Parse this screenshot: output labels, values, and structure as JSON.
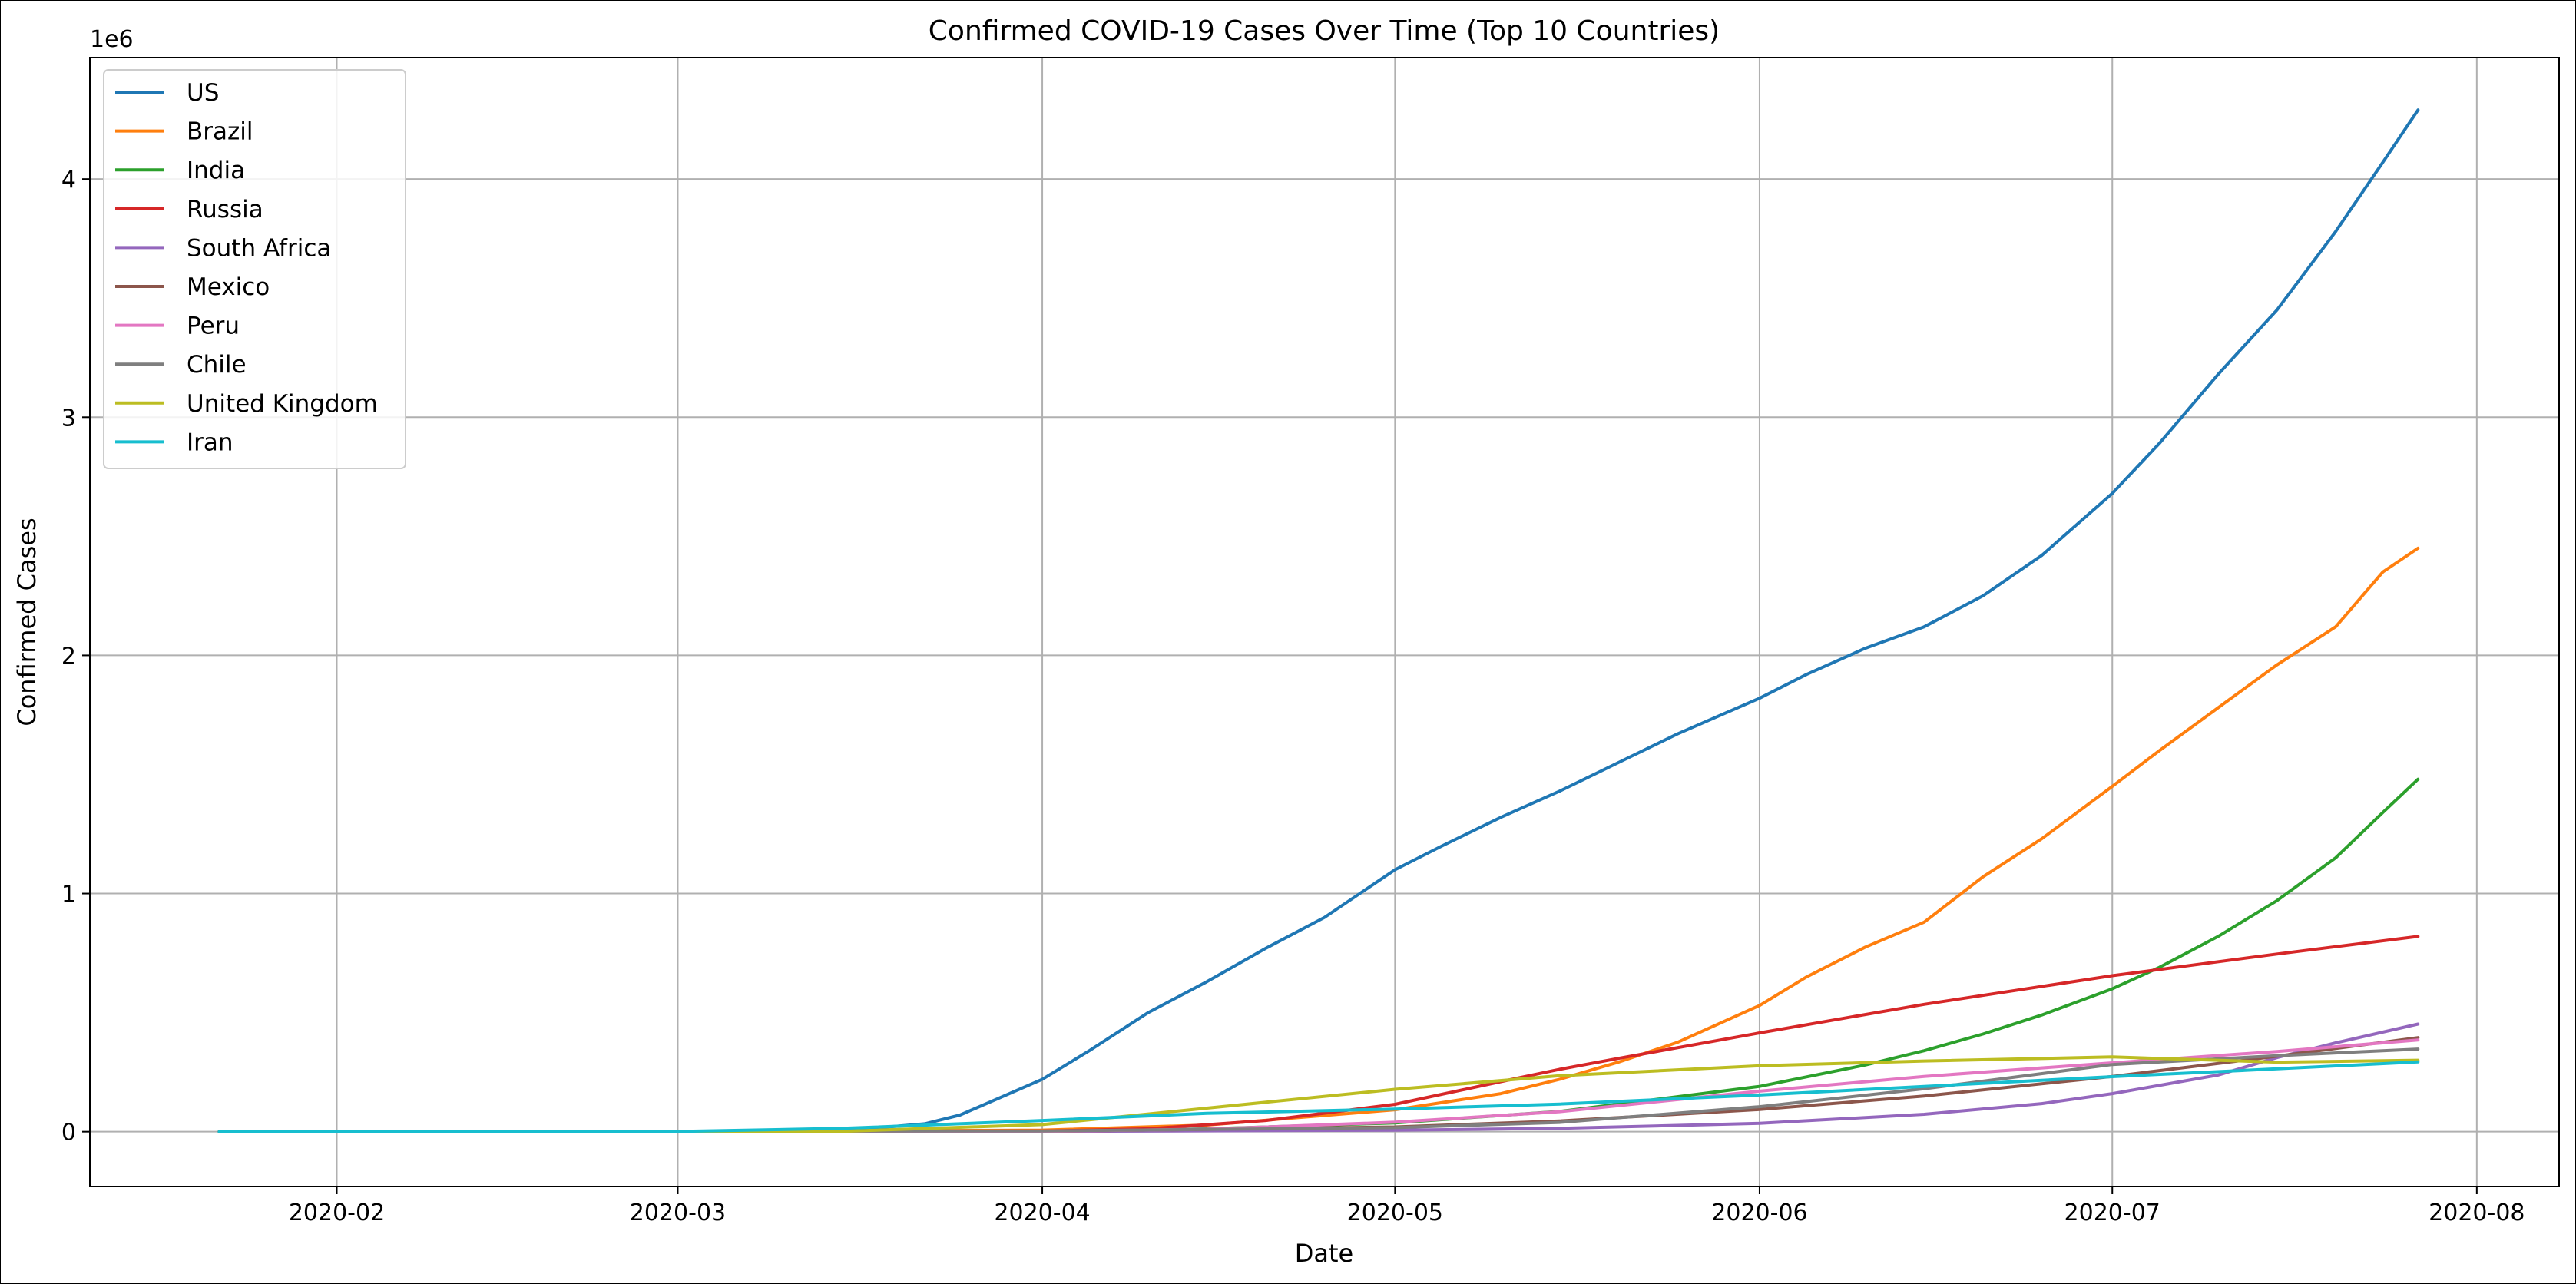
{
  "chart_data": {
    "type": "line",
    "title": "Confirmed COVID-19 Cases Over Time (Top 10 Countries)",
    "xlabel": "Date",
    "ylabel": "Confirmed Cases",
    "y_scale_text": "1e6",
    "xlim": [
      "2020-01-11",
      "2020-08-08"
    ],
    "ylim": [
      -230000,
      4510000
    ],
    "x_ticks": [
      "2020-02-01",
      "2020-03-01",
      "2020-04-01",
      "2020-05-01",
      "2020-06-01",
      "2020-07-01",
      "2020-08-01"
    ],
    "x_tick_labels": [
      "2020-02",
      "2020-03",
      "2020-04",
      "2020-05",
      "2020-06",
      "2020-07",
      "2020-08"
    ],
    "y_ticks": [
      0,
      1000000,
      2000000,
      3000000,
      4000000
    ],
    "y_tick_labels": [
      "0",
      "1",
      "2",
      "3",
      "4"
    ],
    "grid": true,
    "legend_position": "upper-left",
    "series": [
      {
        "name": "US",
        "color": "#1f77b4",
        "points": [
          [
            "2020-01-22",
            0
          ],
          [
            "2020-03-01",
            100
          ],
          [
            "2020-03-15",
            3500
          ],
          [
            "2020-03-22",
            33000
          ],
          [
            "2020-03-25",
            70000
          ],
          [
            "2020-04-01",
            220000
          ],
          [
            "2020-04-05",
            340000
          ],
          [
            "2020-04-10",
            500000
          ],
          [
            "2020-04-15",
            630000
          ],
          [
            "2020-04-20",
            770000
          ],
          [
            "2020-04-25",
            900000
          ],
          [
            "2020-05-01",
            1100000
          ],
          [
            "2020-05-05",
            1200000
          ],
          [
            "2020-05-10",
            1320000
          ],
          [
            "2020-05-15",
            1430000
          ],
          [
            "2020-05-20",
            1550000
          ],
          [
            "2020-05-25",
            1670000
          ],
          [
            "2020-06-01",
            1820000
          ],
          [
            "2020-06-05",
            1920000
          ],
          [
            "2020-06-10",
            2030000
          ],
          [
            "2020-06-15",
            2120000
          ],
          [
            "2020-06-20",
            2250000
          ],
          [
            "2020-06-25",
            2420000
          ],
          [
            "2020-07-01",
            2680000
          ],
          [
            "2020-07-05",
            2890000
          ],
          [
            "2020-07-10",
            3180000
          ],
          [
            "2020-07-15",
            3450000
          ],
          [
            "2020-07-20",
            3780000
          ],
          [
            "2020-07-24",
            4070000
          ],
          [
            "2020-07-27",
            4290000
          ]
        ]
      },
      {
        "name": "Brazil",
        "color": "#ff7f0e",
        "points": [
          [
            "2020-01-22",
            0
          ],
          [
            "2020-03-01",
            0
          ],
          [
            "2020-04-01",
            6800
          ],
          [
            "2020-04-15",
            28000
          ],
          [
            "2020-05-01",
            92000
          ],
          [
            "2020-05-10",
            160000
          ],
          [
            "2020-05-15",
            220000
          ],
          [
            "2020-05-20",
            292000
          ],
          [
            "2020-05-25",
            375000
          ],
          [
            "2020-06-01",
            530000
          ],
          [
            "2020-06-05",
            650000
          ],
          [
            "2020-06-10",
            775000
          ],
          [
            "2020-06-15",
            880000
          ],
          [
            "2020-06-20",
            1070000
          ],
          [
            "2020-06-25",
            1230000
          ],
          [
            "2020-07-01",
            1450000
          ],
          [
            "2020-07-05",
            1600000
          ],
          [
            "2020-07-10",
            1780000
          ],
          [
            "2020-07-15",
            1960000
          ],
          [
            "2020-07-20",
            2120000
          ],
          [
            "2020-07-24",
            2350000
          ],
          [
            "2020-07-27",
            2450000
          ]
        ]
      },
      {
        "name": "India",
        "color": "#2ca02c",
        "points": [
          [
            "2020-01-22",
            0
          ],
          [
            "2020-04-01",
            1900
          ],
          [
            "2020-04-15",
            12000
          ],
          [
            "2020-05-01",
            37000
          ],
          [
            "2020-05-15",
            85000
          ],
          [
            "2020-06-01",
            190000
          ],
          [
            "2020-06-10",
            280000
          ],
          [
            "2020-06-15",
            340000
          ],
          [
            "2020-06-20",
            410000
          ],
          [
            "2020-06-25",
            490000
          ],
          [
            "2020-07-01",
            600000
          ],
          [
            "2020-07-05",
            690000
          ],
          [
            "2020-07-10",
            820000
          ],
          [
            "2020-07-15",
            970000
          ],
          [
            "2020-07-20",
            1150000
          ],
          [
            "2020-07-24",
            1340000
          ],
          [
            "2020-07-27",
            1480000
          ]
        ]
      },
      {
        "name": "Russia",
        "color": "#d62728",
        "points": [
          [
            "2020-01-22",
            0
          ],
          [
            "2020-04-01",
            2800
          ],
          [
            "2020-04-10",
            12000
          ],
          [
            "2020-04-20",
            47000
          ],
          [
            "2020-05-01",
            115000
          ],
          [
            "2020-05-10",
            210000
          ],
          [
            "2020-05-15",
            262000
          ],
          [
            "2020-05-20",
            308000
          ],
          [
            "2020-06-01",
            415000
          ],
          [
            "2020-06-15",
            535000
          ],
          [
            "2020-07-01",
            655000
          ],
          [
            "2020-07-15",
            746000
          ],
          [
            "2020-07-27",
            820000
          ]
        ]
      },
      {
        "name": "South Africa",
        "color": "#9467bd",
        "points": [
          [
            "2020-01-22",
            0
          ],
          [
            "2020-04-01",
            1400
          ],
          [
            "2020-05-01",
            5900
          ],
          [
            "2020-05-15",
            14000
          ],
          [
            "2020-06-01",
            35000
          ],
          [
            "2020-06-15",
            73000
          ],
          [
            "2020-06-25",
            118000
          ],
          [
            "2020-07-01",
            160000
          ],
          [
            "2020-07-10",
            238000
          ],
          [
            "2020-07-15",
            311000
          ],
          [
            "2020-07-20",
            373000
          ],
          [
            "2020-07-27",
            452000
          ]
        ]
      },
      {
        "name": "Mexico",
        "color": "#8c564b",
        "points": [
          [
            "2020-01-22",
            0
          ],
          [
            "2020-04-01",
            1200
          ],
          [
            "2020-05-01",
            20000
          ],
          [
            "2020-05-15",
            45000
          ],
          [
            "2020-06-01",
            93000
          ],
          [
            "2020-06-15",
            150000
          ],
          [
            "2020-07-01",
            232000
          ],
          [
            "2020-07-15",
            317000
          ],
          [
            "2020-07-27",
            395000
          ]
        ]
      },
      {
        "name": "Peru",
        "color": "#e377c2",
        "points": [
          [
            "2020-01-22",
            0
          ],
          [
            "2020-04-01",
            1300
          ],
          [
            "2020-04-15",
            11000
          ],
          [
            "2020-05-01",
            40000
          ],
          [
            "2020-05-15",
            84000
          ],
          [
            "2020-06-01",
            170000
          ],
          [
            "2020-06-15",
            232000
          ],
          [
            "2020-07-01",
            289000
          ],
          [
            "2020-07-15",
            337000
          ],
          [
            "2020-07-27",
            385000
          ]
        ]
      },
      {
        "name": "Chile",
        "color": "#7f7f7f",
        "points": [
          [
            "2020-01-22",
            0
          ],
          [
            "2020-04-01",
            3000
          ],
          [
            "2020-05-01",
            17000
          ],
          [
            "2020-05-15",
            39000
          ],
          [
            "2020-06-01",
            105000
          ],
          [
            "2020-06-15",
            180000
          ],
          [
            "2020-07-01",
            282000
          ],
          [
            "2020-07-15",
            319000
          ],
          [
            "2020-07-27",
            347000
          ]
        ]
      },
      {
        "name": "United Kingdom",
        "color": "#bcbd22",
        "points": [
          [
            "2020-01-22",
            0
          ],
          [
            "2020-03-01",
            36
          ],
          [
            "2020-03-15",
            1400
          ],
          [
            "2020-04-01",
            30000
          ],
          [
            "2020-04-15",
            99000
          ],
          [
            "2020-05-01",
            178000
          ],
          [
            "2020-05-15",
            235000
          ],
          [
            "2020-06-01",
            277000
          ],
          [
            "2020-06-15",
            297000
          ],
          [
            "2020-07-01",
            314000
          ],
          [
            "2020-07-15",
            292000
          ],
          [
            "2020-07-27",
            300000
          ]
        ]
      },
      {
        "name": "Iran",
        "color": "#17becf",
        "points": [
          [
            "2020-01-22",
            0
          ],
          [
            "2020-02-20",
            0
          ],
          [
            "2020-03-01",
            980
          ],
          [
            "2020-03-15",
            14000
          ],
          [
            "2020-04-01",
            47000
          ],
          [
            "2020-04-15",
            77000
          ],
          [
            "2020-05-01",
            95000
          ],
          [
            "2020-05-15",
            116000
          ],
          [
            "2020-06-01",
            154000
          ],
          [
            "2020-06-15",
            190000
          ],
          [
            "2020-07-01",
            231000
          ],
          [
            "2020-07-15",
            264000
          ],
          [
            "2020-07-27",
            293000
          ]
        ]
      }
    ]
  }
}
